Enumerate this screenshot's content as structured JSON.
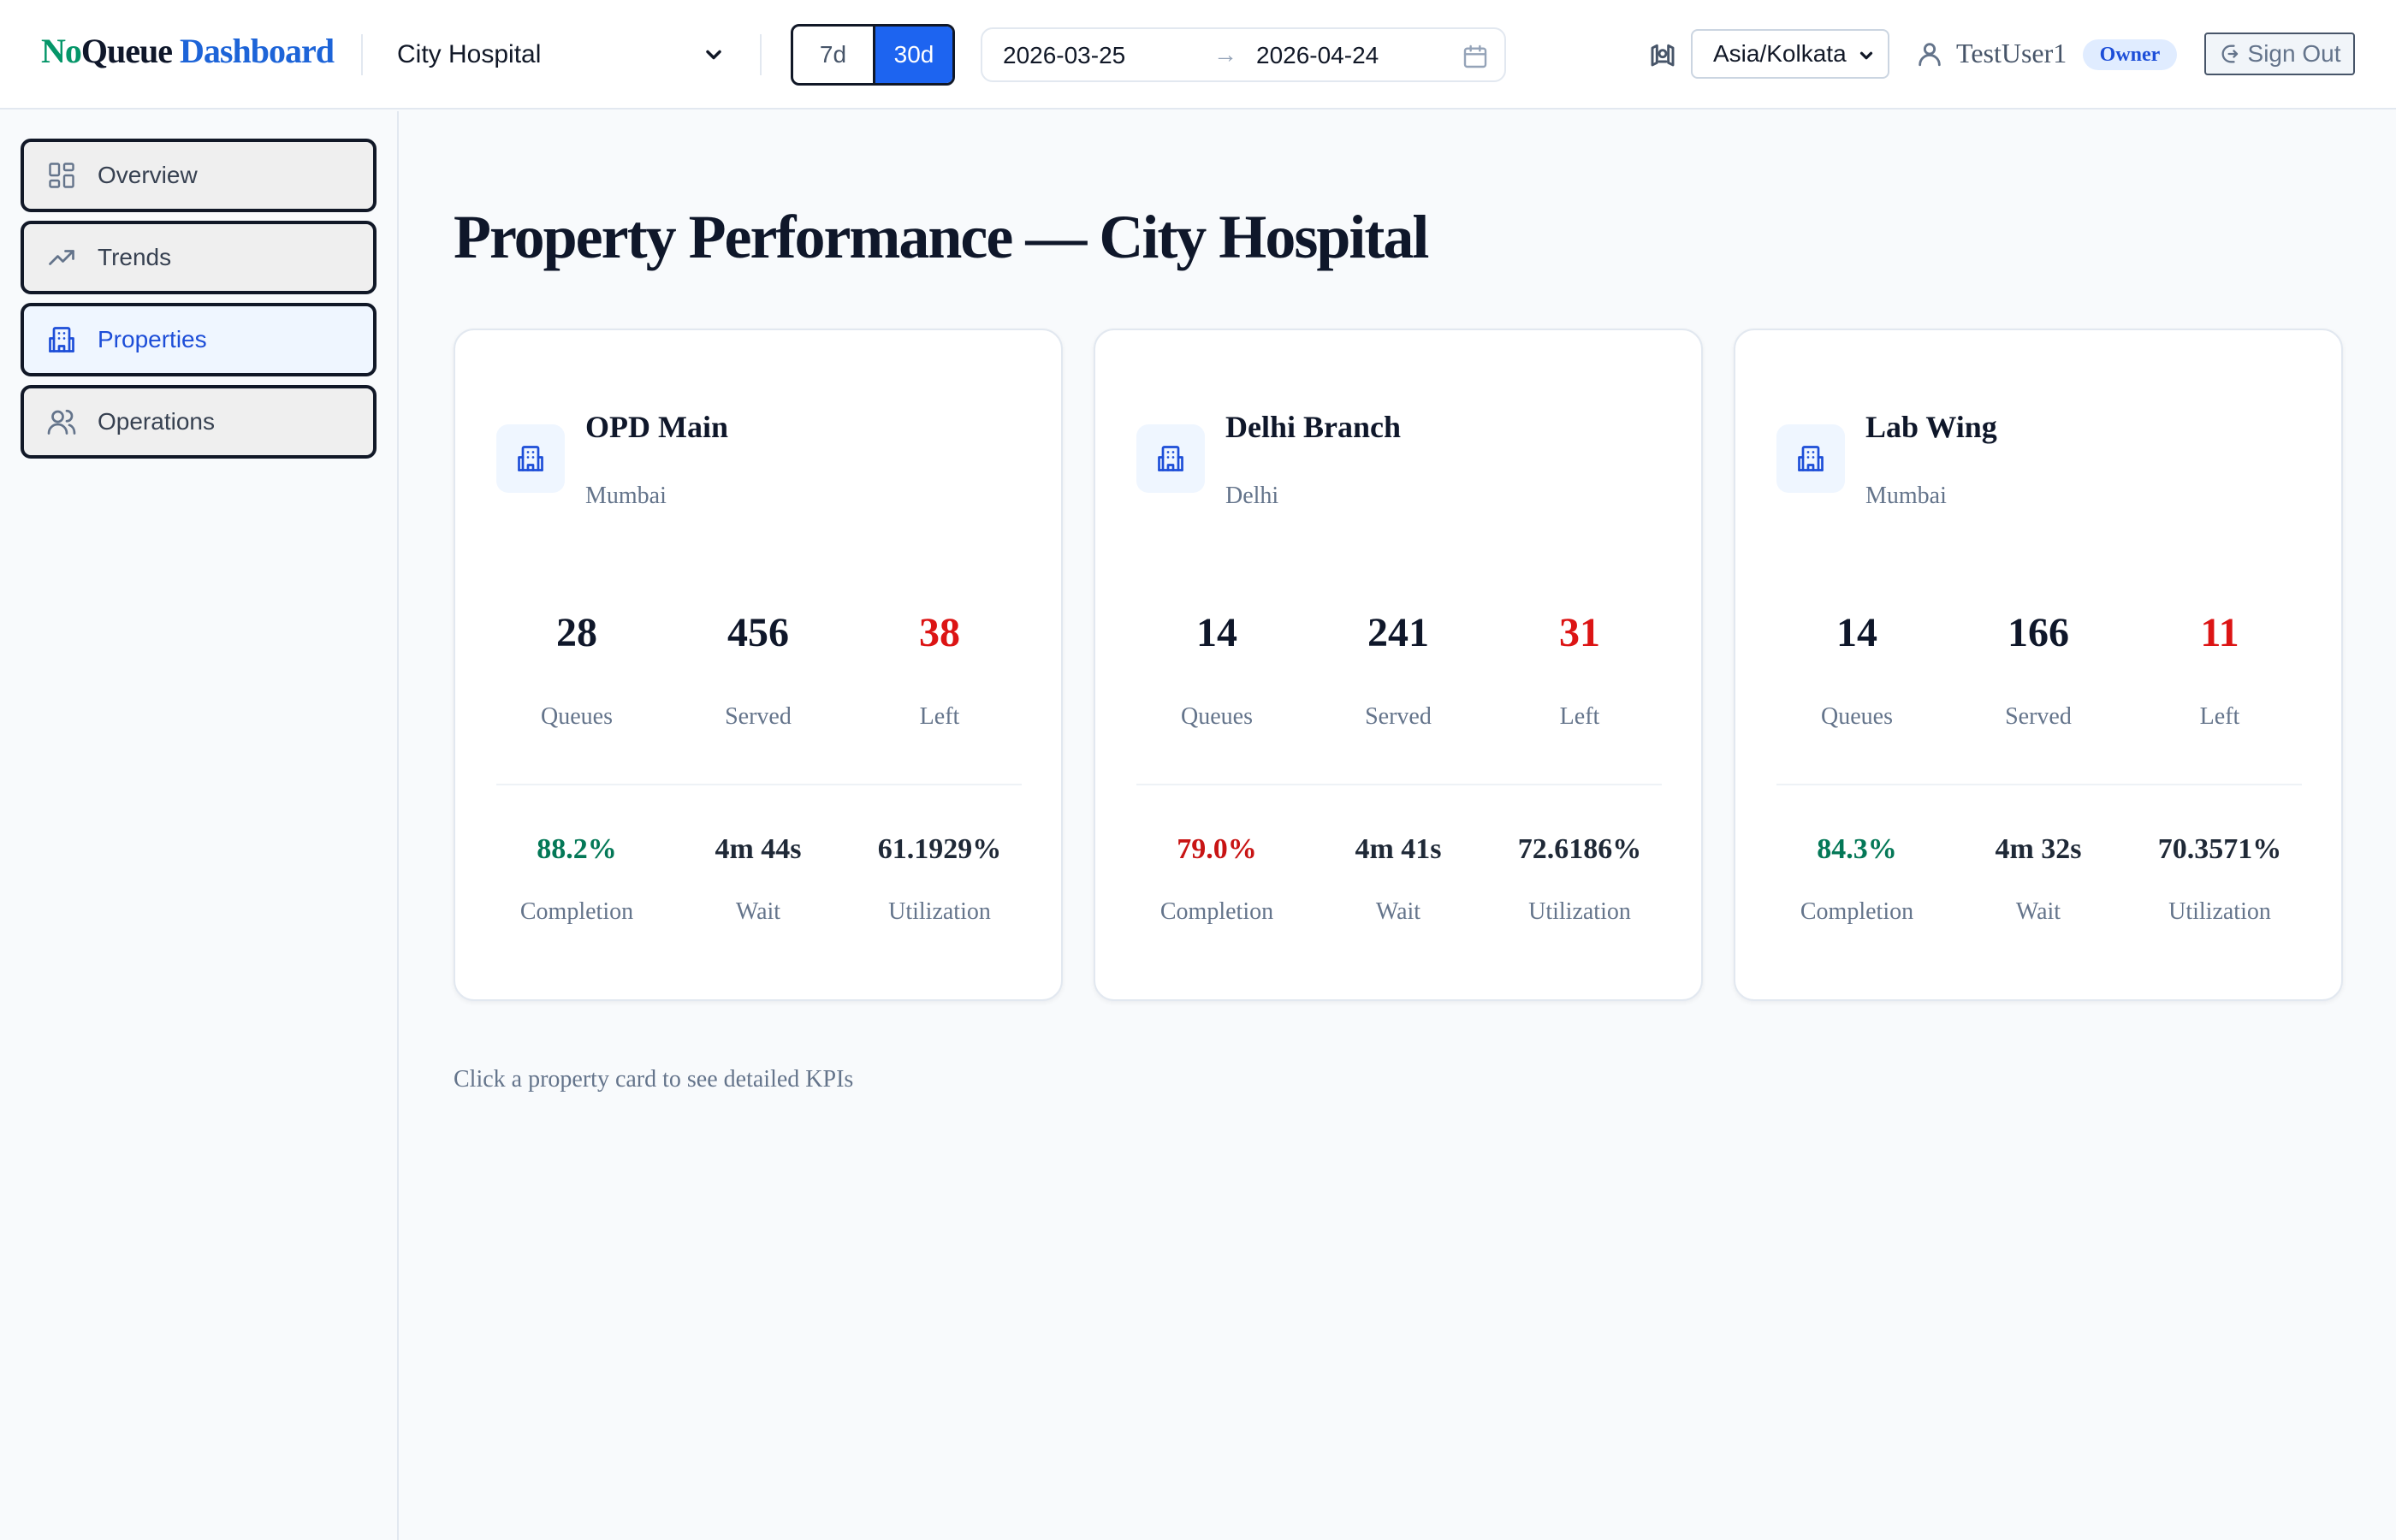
{
  "header": {
    "brand": {
      "part1": "No",
      "part2": "Queue",
      "part3": "Dashboard"
    },
    "property_select": {
      "value": "City Hospital"
    },
    "range_toggle": {
      "options": [
        "7d",
        "30d"
      ],
      "selected": "30d"
    },
    "date_range": {
      "start": "2026-03-25",
      "arrow": "→",
      "end": "2026-04-24"
    },
    "timezone": {
      "value": "Asia/Kolkata"
    },
    "user": {
      "name": "TestUser1",
      "role": "Owner"
    },
    "signout_label": "Sign Out"
  },
  "sidebar": {
    "items": [
      {
        "label": "Overview",
        "icon": "grid-icon",
        "active": false
      },
      {
        "label": "Trends",
        "icon": "trending-up-icon",
        "active": false
      },
      {
        "label": "Properties",
        "icon": "building-icon",
        "active": true
      },
      {
        "label": "Operations",
        "icon": "users-icon",
        "active": false
      }
    ]
  },
  "main": {
    "title": "Property Performance — City Hospital",
    "cards": [
      {
        "name": "OPD Main",
        "location": "Mumbai",
        "queues": "28",
        "served": "456",
        "left": "38",
        "completion": "88.2%",
        "completion_status": "good",
        "wait": "4m 44s",
        "utilization": "61.1929%"
      },
      {
        "name": "Delhi Branch",
        "location": "Delhi",
        "queues": "14",
        "served": "241",
        "left": "31",
        "completion": "79.0%",
        "completion_status": "bad",
        "wait": "4m 41s",
        "utilization": "72.6186%"
      },
      {
        "name": "Lab Wing",
        "location": "Mumbai",
        "queues": "14",
        "served": "166",
        "left": "11",
        "completion": "84.3%",
        "completion_status": "good",
        "wait": "4m 32s",
        "utilization": "70.3571%"
      }
    ],
    "labels": {
      "queues": "Queues",
      "served": "Served",
      "left": "Left",
      "completion": "Completion",
      "wait": "Wait",
      "utilization": "Utilization"
    },
    "hint": "Click a property card to see detailed KPIs"
  },
  "colors": {
    "accent": "#1d64f0",
    "brand_green": "#059669",
    "brand_blue": "#1d64d8",
    "danger": "#dc1414",
    "success": "#047857"
  }
}
